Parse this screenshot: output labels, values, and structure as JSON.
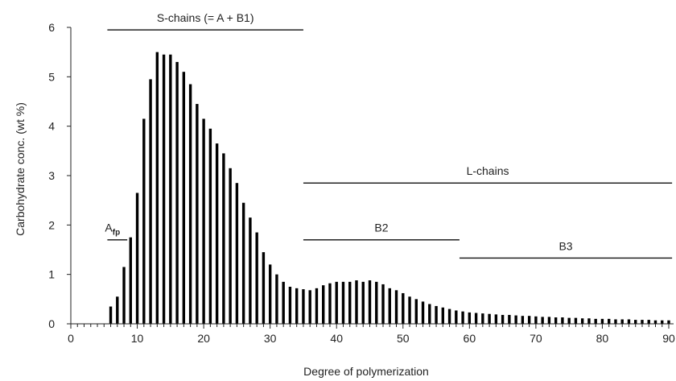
{
  "chart_data": {
    "type": "bar",
    "title": "",
    "xlabel": "Degree of polymerization",
    "ylabel": "Carbohydrate conc. (wt %)",
    "xlim": [
      0,
      90
    ],
    "ylim": [
      0,
      6
    ],
    "xticks": [
      0,
      10,
      20,
      30,
      40,
      50,
      60,
      70,
      80,
      90
    ],
    "yticks": [
      0,
      1,
      2,
      3,
      4,
      5,
      6
    ],
    "grid": false,
    "bar_color": "#000000",
    "x": [
      6,
      7,
      8,
      9,
      10,
      11,
      12,
      13,
      14,
      15,
      16,
      17,
      18,
      19,
      20,
      21,
      22,
      23,
      24,
      25,
      26,
      27,
      28,
      29,
      30,
      31,
      32,
      33,
      34,
      35,
      36,
      37,
      38,
      39,
      40,
      41,
      42,
      43,
      44,
      45,
      46,
      47,
      48,
      49,
      50,
      51,
      52,
      53,
      54,
      55,
      56,
      57,
      58,
      59,
      60,
      61,
      62,
      63,
      64,
      65,
      66,
      67,
      68,
      69,
      70,
      71,
      72,
      73,
      74,
      75,
      76,
      77,
      78,
      79,
      80,
      81,
      82,
      83,
      84,
      85,
      86,
      87,
      88,
      89,
      90
    ],
    "values": [
      0.35,
      0.55,
      1.15,
      1.75,
      2.65,
      4.15,
      4.95,
      5.5,
      5.45,
      5.45,
      5.3,
      5.1,
      4.85,
      4.45,
      4.15,
      3.95,
      3.65,
      3.45,
      3.15,
      2.85,
      2.45,
      2.15,
      1.85,
      1.45,
      1.2,
      1.0,
      0.85,
      0.75,
      0.72,
      0.7,
      0.68,
      0.72,
      0.78,
      0.82,
      0.85,
      0.85,
      0.85,
      0.88,
      0.85,
      0.88,
      0.85,
      0.8,
      0.72,
      0.68,
      0.62,
      0.55,
      0.5,
      0.45,
      0.4,
      0.36,
      0.33,
      0.3,
      0.27,
      0.25,
      0.23,
      0.22,
      0.21,
      0.2,
      0.19,
      0.18,
      0.18,
      0.17,
      0.16,
      0.16,
      0.15,
      0.14,
      0.14,
      0.13,
      0.13,
      0.12,
      0.12,
      0.11,
      0.11,
      0.1,
      0.1,
      0.1,
      0.09,
      0.09,
      0.09,
      0.08,
      0.08,
      0.08,
      0.07,
      0.07,
      0.07
    ],
    "annotations": [
      {
        "label": "S-chains (= A + B1)",
        "x_start": 5.5,
        "x_end": 35,
        "y": 5.95
      },
      {
        "label": "L-chains",
        "x_start": 35,
        "x_end": 90.5,
        "y": 2.85
      },
      {
        "label": "B2",
        "x_start": 35,
        "x_end": 58.5,
        "y": 1.7
      },
      {
        "label": "B3",
        "x_start": 58.5,
        "x_end": 90.5,
        "y": 1.33
      }
    ],
    "afp_label": {
      "main": "A",
      "sub": "fp",
      "x_start": 5.5,
      "x_end": 8.5,
      "y": 1.7
    }
  }
}
